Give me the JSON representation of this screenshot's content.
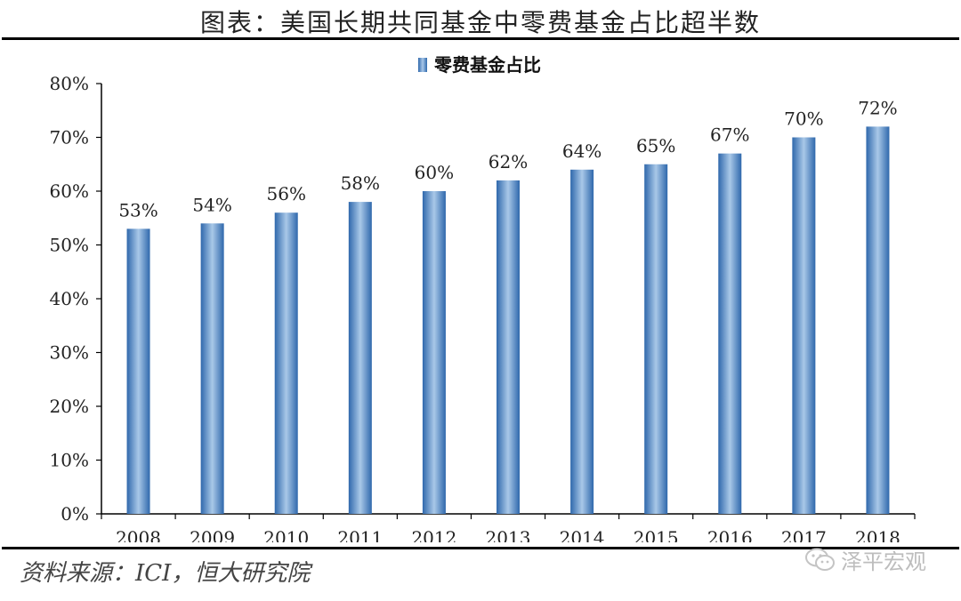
{
  "header": {
    "title": "图表：美国长期共同基金中零费基金占比超半数"
  },
  "footer": {
    "source": "资料来源：ICI，恒大研究院",
    "watermark_text": "泽平宏观",
    "watermark_icon": "wechat-icon"
  },
  "colors": {
    "bar": "#4f86c6",
    "bar_light": "#a9c8e8",
    "bar_dark": "#2f68ac",
    "axis": "#000000",
    "text": "#222222"
  },
  "chart_data": {
    "type": "bar",
    "title": "",
    "xlabel": "",
    "ylabel": "",
    "categories": [
      "2008",
      "2009",
      "2010",
      "2011",
      "2012",
      "2013",
      "2014",
      "2015",
      "2016",
      "2017",
      "2018"
    ],
    "series": [
      {
        "name": "零费基金占比",
        "values": [
          53,
          54,
          56,
          58,
          60,
          62,
          64,
          65,
          67,
          70,
          72
        ]
      }
    ],
    "data_labels": [
      "53%",
      "54%",
      "56%",
      "58%",
      "60%",
      "62%",
      "64%",
      "65%",
      "67%",
      "70%",
      "72%"
    ],
    "ylim": [
      0,
      80
    ],
    "yticks": [
      0,
      10,
      20,
      30,
      40,
      50,
      60,
      70,
      80
    ],
    "ytick_labels": [
      "0%",
      "10%",
      "20%",
      "30%",
      "40%",
      "50%",
      "60%",
      "70%",
      "80%"
    ],
    "legend_position": "top-center",
    "grid": false
  }
}
